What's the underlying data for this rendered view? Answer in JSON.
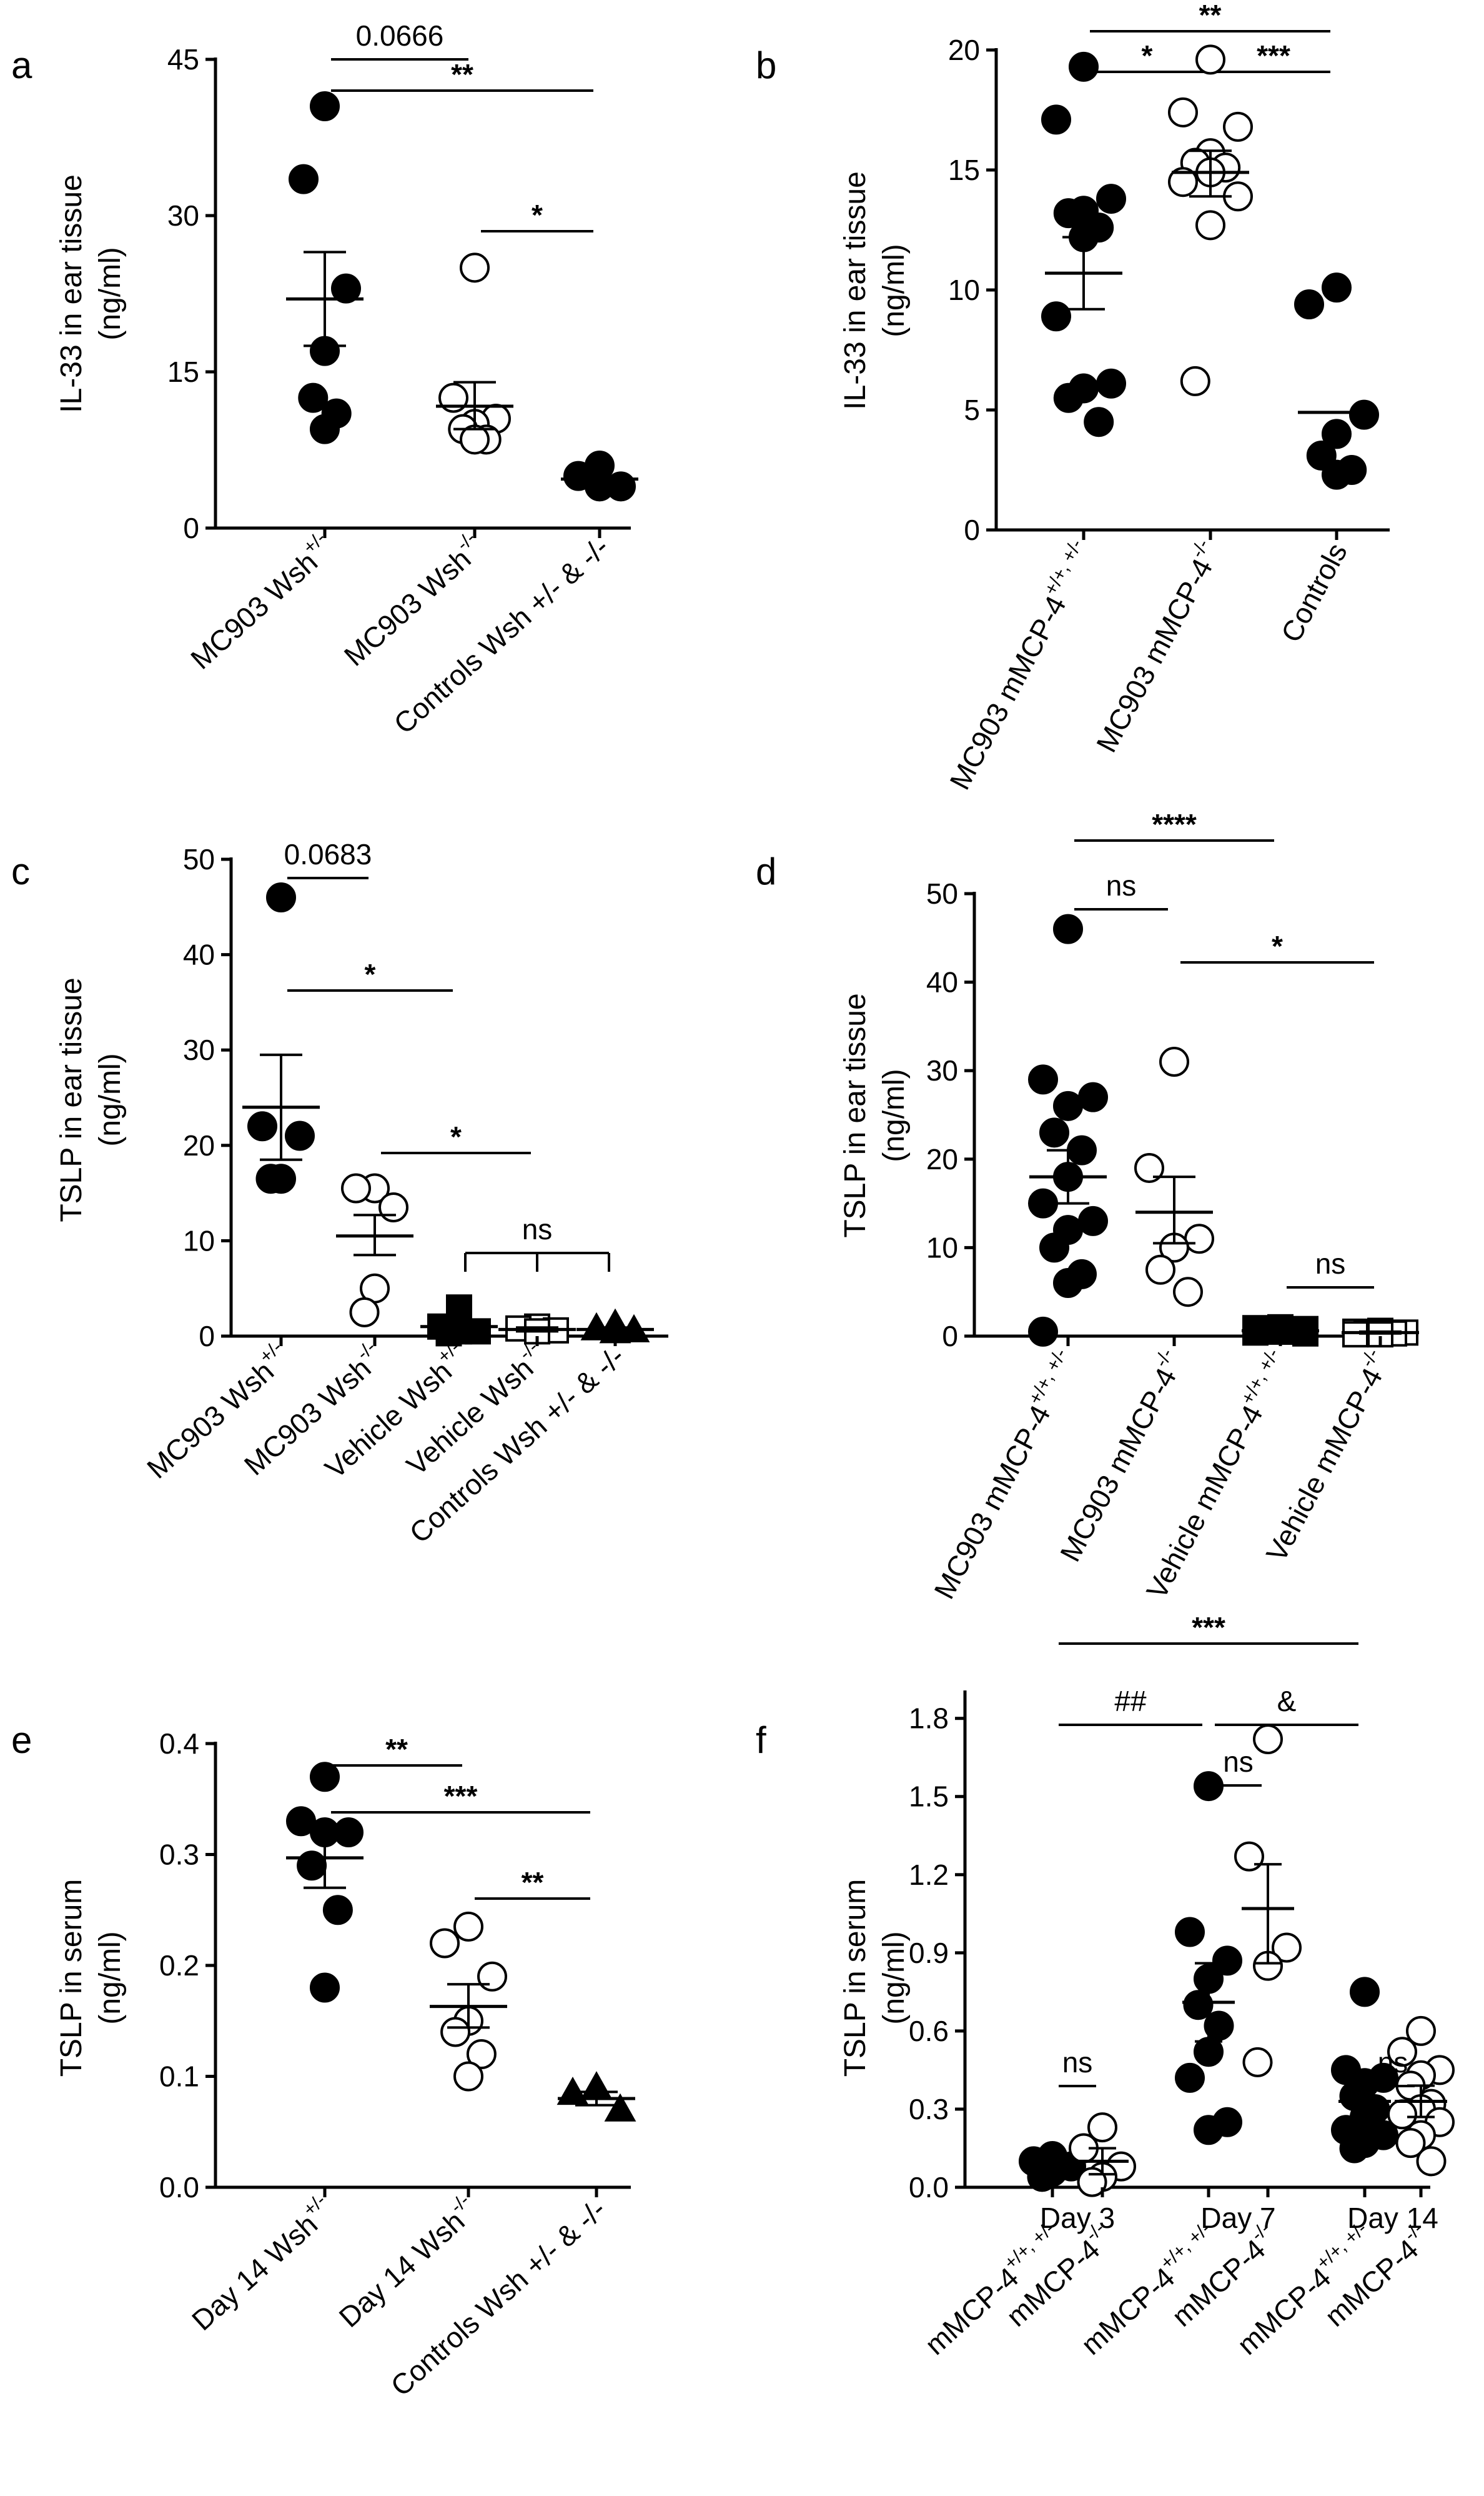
{
  "chart_data": [
    {
      "id": "a",
      "panel_label": "a",
      "type": "scatter",
      "ylabel": [
        "IL-33 in ear tissue",
        "(ng/ml)"
      ],
      "ylim": [
        0,
        45
      ],
      "yticks": [
        "0",
        "15",
        "30",
        "45"
      ],
      "groups": [
        {
          "label": "MC903 Wsh",
          "sup": "+/-",
          "marker": "filled-circle",
          "values": [
            40.5,
            33.5,
            23,
            17,
            12.5,
            11,
            9.5
          ],
          "mean": 22,
          "sem_low": 17.5,
          "sem_high": 26.5
        },
        {
          "label": "MC903 Wsh",
          "sup": "-/-",
          "marker": "open-circle",
          "values": [
            25,
            12.5,
            10.5,
            10,
            9.5,
            8.5,
            8.5
          ],
          "mean": 11.7,
          "sem_low": 9.5,
          "sem_high": 14
        },
        {
          "label": "Controls Wsh +/- & -/-",
          "sup": "",
          "marker": "filled-circle",
          "values": [
            6,
            5,
            4,
            4
          ],
          "mean": 4.7,
          "sem_low": 4.7,
          "sem_high": 4.7
        }
      ],
      "comparisons": [
        {
          "from": 0,
          "to": 1,
          "level": 0,
          "text": "0.0666"
        },
        {
          "from": 0,
          "to": 2,
          "level": 1,
          "text": "**"
        },
        {
          "from": 1,
          "to": 2,
          "level": 2,
          "text": "*"
        }
      ]
    },
    {
      "id": "b",
      "panel_label": "b",
      "type": "scatter",
      "ylabel": [
        "IL-33 in ear tissue",
        "(ng/ml)"
      ],
      "ylim": [
        0,
        20
      ],
      "yticks": [
        "0",
        "5",
        "10",
        "15",
        "20"
      ],
      "groups": [
        {
          "label": "MC903 mMCP-4",
          "sup": "+/+, +/-",
          "marker": "filled-circle",
          "values": [
            19.3,
            17.1,
            13.8,
            13.3,
            13.2,
            12.6,
            12.2,
            8.9,
            6.1,
            5.9,
            5.5,
            4.5
          ],
          "mean": 10.7,
          "sem_low": 9.2,
          "sem_high": 12.2
        },
        {
          "label": "MC903 mMCP-4",
          "sup": "-/-",
          "marker": "open-circle",
          "values": [
            19.6,
            17.4,
            16.8,
            15.7,
            15.3,
            15.1,
            14.9,
            14.5,
            13.9,
            12.7,
            6.2
          ],
          "mean": 14.9,
          "sem_low": 13.9,
          "sem_high": 15.8
        },
        {
          "label": "Controls",
          "sup": "",
          "marker": "filled-circle",
          "values": [
            10.1,
            9.4,
            4.8,
            4.0,
            3.1,
            2.5,
            2.3
          ],
          "mean": 4.9,
          "sem_low": 4.9,
          "sem_high": 4.9
        }
      ],
      "comparisons": [
        {
          "from": 0,
          "to": 2,
          "level": 0,
          "text": "**"
        },
        {
          "from": 0,
          "to": 1,
          "level": 1,
          "text": "*"
        },
        {
          "from": 1,
          "to": 2,
          "level": 1,
          "text": "***"
        }
      ]
    },
    {
      "id": "c",
      "panel_label": "c",
      "type": "scatter",
      "ylabel": [
        "TSLP in ear tissue",
        "(ng/ml)"
      ],
      "ylim": [
        0,
        50
      ],
      "yticks": [
        "0",
        "10",
        "20",
        "30",
        "40",
        "50"
      ],
      "groups": [
        {
          "label": "MC903 Wsh",
          "sup": "+/-",
          "marker": "filled-circle",
          "values": [
            46,
            22,
            21,
            16.5,
            16.5
          ],
          "mean": 24,
          "sem_low": 18.5,
          "sem_high": 29.5
        },
        {
          "label": "MC903 Wsh",
          "sup": "-/-",
          "marker": "open-circle",
          "values": [
            15.5,
            15.5,
            13.5,
            5,
            2.5
          ],
          "mean": 10.5,
          "sem_low": 8.5,
          "sem_high": 12.7
        },
        {
          "label": "Vehicle Wsh",
          "sup": "+/-",
          "marker": "filled-square",
          "values": [
            3,
            1,
            0.5,
            0.5,
            0.3
          ],
          "mean": 1,
          "sem_low": 0.5,
          "sem_high": 1.5
        },
        {
          "label": "Vehicle Wsh",
          "sup": "-/-",
          "marker": "open-square",
          "values": [
            1,
            0.8,
            0.6,
            0.5
          ],
          "mean": 0.7,
          "sem_low": 0.5,
          "sem_high": 0.9
        },
        {
          "label": "Controls Wsh +/- & -/-",
          "sup": "",
          "marker": "filled-triangle",
          "values": [
            1.2,
            0.8,
            0.6,
            0.5
          ],
          "mean": 0.7,
          "sem_low": 0.5,
          "sem_high": 0.9
        }
      ],
      "comparisons": [
        {
          "from": 0,
          "to": 1,
          "level": 0,
          "text": "0.0683"
        },
        {
          "from": 0,
          "to": 2,
          "level": 1,
          "text": "*"
        },
        {
          "from": 1,
          "to": 3,
          "level": 2,
          "text": "*"
        },
        {
          "from": 2,
          "to": 4,
          "level": 3,
          "text": "ns",
          "bracket": true
        }
      ]
    },
    {
      "id": "d",
      "panel_label": "d",
      "type": "scatter",
      "ylabel": [
        "TSLP in ear tissue",
        "(ng/ml)"
      ],
      "ylim": [
        0,
        50
      ],
      "yticks": [
        "0",
        "10",
        "20",
        "30",
        "40",
        "50"
      ],
      "groups": [
        {
          "label": "MC903 mMCP-4",
          "sup": "+/+, +/-",
          "marker": "filled-circle",
          "values": [
            46,
            29,
            27,
            26,
            23,
            21,
            18,
            15,
            13,
            12,
            10,
            7,
            6,
            0.5
          ],
          "mean": 18,
          "sem_low": 15,
          "sem_high": 21
        },
        {
          "label": "MC903 mMCP-4",
          "sup": "-/-",
          "marker": "open-circle",
          "values": [
            31,
            19,
            11,
            10,
            7.5,
            5
          ],
          "mean": 14,
          "sem_low": 10.5,
          "sem_high": 18
        },
        {
          "label": "Vehicle mMCP-4",
          "sup": "+/+, +/-",
          "marker": "filled-square",
          "values": [
            1,
            0.9,
            0.8,
            0.7,
            0.6,
            0.5,
            0.5,
            0.4,
            0.3
          ],
          "mean": 0.6,
          "sem_low": 0.5,
          "sem_high": 0.7
        },
        {
          "label": "Vehicle mMCP-4",
          "sup": "-/-",
          "marker": "open-square",
          "values": [
            0.6,
            0.5,
            0.4,
            0.4,
            0.3,
            0.3,
            0.2,
            0.2
          ],
          "mean": 0.4,
          "sem_low": 0.3,
          "sem_high": 0.5
        }
      ],
      "comparisons": [
        {
          "from": 0,
          "to": 2,
          "level": 0,
          "text": "****"
        },
        {
          "from": 0,
          "to": 1,
          "level": 1,
          "text": "ns"
        },
        {
          "from": 1,
          "to": 3,
          "level": 2,
          "text": "*"
        },
        {
          "from": 2,
          "to": 3,
          "level": 3,
          "text": "ns"
        }
      ]
    },
    {
      "id": "e",
      "panel_label": "e",
      "type": "scatter",
      "ylabel": [
        "TSLP in serum",
        "(ng/ml)"
      ],
      "ylim": [
        0,
        0.4
      ],
      "yticks": [
        "0.0",
        "0.1",
        "0.2",
        "0.3",
        "0.4"
      ],
      "groups": [
        {
          "label": "Day 14 Wsh",
          "sup": "+/-",
          "marker": "filled-circle",
          "values": [
            0.37,
            0.33,
            0.32,
            0.32,
            0.29,
            0.25,
            0.18
          ],
          "mean": 0.297,
          "sem_low": 0.27,
          "sem_high": 0.324
        },
        {
          "label": "Day 14 Wsh",
          "sup": "-/-",
          "marker": "open-circle",
          "values": [
            0.235,
            0.22,
            0.19,
            0.15,
            0.14,
            0.12,
            0.1
          ],
          "mean": 0.163,
          "sem_low": 0.144,
          "sem_high": 0.183
        },
        {
          "label": "Controls Wsh +/- & -/-",
          "sup": "",
          "marker": "filled-triangle",
          "values": [
            0.09,
            0.085,
            0.07
          ],
          "mean": 0.08,
          "sem_low": 0.074,
          "sem_high": 0.086
        }
      ],
      "comparisons": [
        {
          "from": 0,
          "to": 1,
          "level": 0,
          "text": "**"
        },
        {
          "from": 0,
          "to": 2,
          "level": 1,
          "text": "***"
        },
        {
          "from": 1,
          "to": 2,
          "level": 2,
          "text": "**"
        }
      ]
    },
    {
      "id": "f",
      "panel_label": "f",
      "type": "scatter",
      "ylabel": [
        "TSLP in serum",
        "(ng/ml)"
      ],
      "ylim": [
        0,
        1.9
      ],
      "yticks": [
        "0.0",
        "0.3",
        "0.6",
        "0.9",
        "1.2",
        "1.5",
        "1.8"
      ],
      "day_labels": [
        "Day 3",
        "Day 7",
        "Day 14"
      ],
      "groups": [
        {
          "label": "mMCP-4",
          "sup": "+/+, +/-",
          "marker": "filled-circle",
          "values": [
            0.12,
            0.1,
            0.08,
            0.06,
            0.04
          ],
          "mean": 0.08,
          "sem_low": 0.06,
          "sem_high": 0.1
        },
        {
          "label": "mMCP-4",
          "sup": "-/-",
          "marker": "open-circle",
          "values": [
            0.23,
            0.15,
            0.08,
            0.04,
            0.02
          ],
          "mean": 0.1,
          "sem_low": 0.05,
          "sem_high": 0.15
        },
        {
          "label": "mMCP-4",
          "sup": "+/+, +/-",
          "marker": "filled-circle",
          "values": [
            1.54,
            0.98,
            0.87,
            0.8,
            0.7,
            0.62,
            0.52,
            0.42,
            0.25,
            0.22
          ],
          "mean": 0.71,
          "sem_low": 0.56,
          "sem_high": 0.86
        },
        {
          "label": "mMCP-4",
          "sup": "-/-",
          "marker": "open-circle",
          "values": [
            1.72,
            1.27,
            0.92,
            0.85,
            0.48
          ],
          "mean": 1.07,
          "sem_low": 0.86,
          "sem_high": 1.24
        },
        {
          "label": "mMCP-4",
          "sup": "+/+, +/-",
          "marker": "filled-circle",
          "values": [
            0.75,
            0.45,
            0.42,
            0.4,
            0.35,
            0.3,
            0.27,
            0.22,
            0.2,
            0.17,
            0.15
          ],
          "mean": 0.33,
          "sem_low": 0.27,
          "sem_high": 0.39
        },
        {
          "label": "mMCP-4",
          "sup": "-/-",
          "marker": "open-circle",
          "values": [
            0.6,
            0.52,
            0.45,
            0.43,
            0.39,
            0.32,
            0.3,
            0.28,
            0.25,
            0.2,
            0.17,
            0.1
          ],
          "mean": 0.33,
          "sem_low": 0.27,
          "sem_high": 0.39
        }
      ],
      "comparisons": [
        {
          "from": 0,
          "to": 4,
          "level": 0,
          "text": "***"
        },
        {
          "from": 0,
          "to": 2,
          "level": 1,
          "text": "##"
        },
        {
          "from": 2,
          "to": 4,
          "level": 1,
          "text": "&"
        },
        {
          "from": 2,
          "to": 3,
          "level": 2,
          "text": "ns"
        },
        {
          "from": 0,
          "to": 1,
          "level": 3,
          "text": "ns"
        },
        {
          "from": 4,
          "to": 5,
          "level": 3,
          "text": "ns"
        }
      ]
    }
  ]
}
